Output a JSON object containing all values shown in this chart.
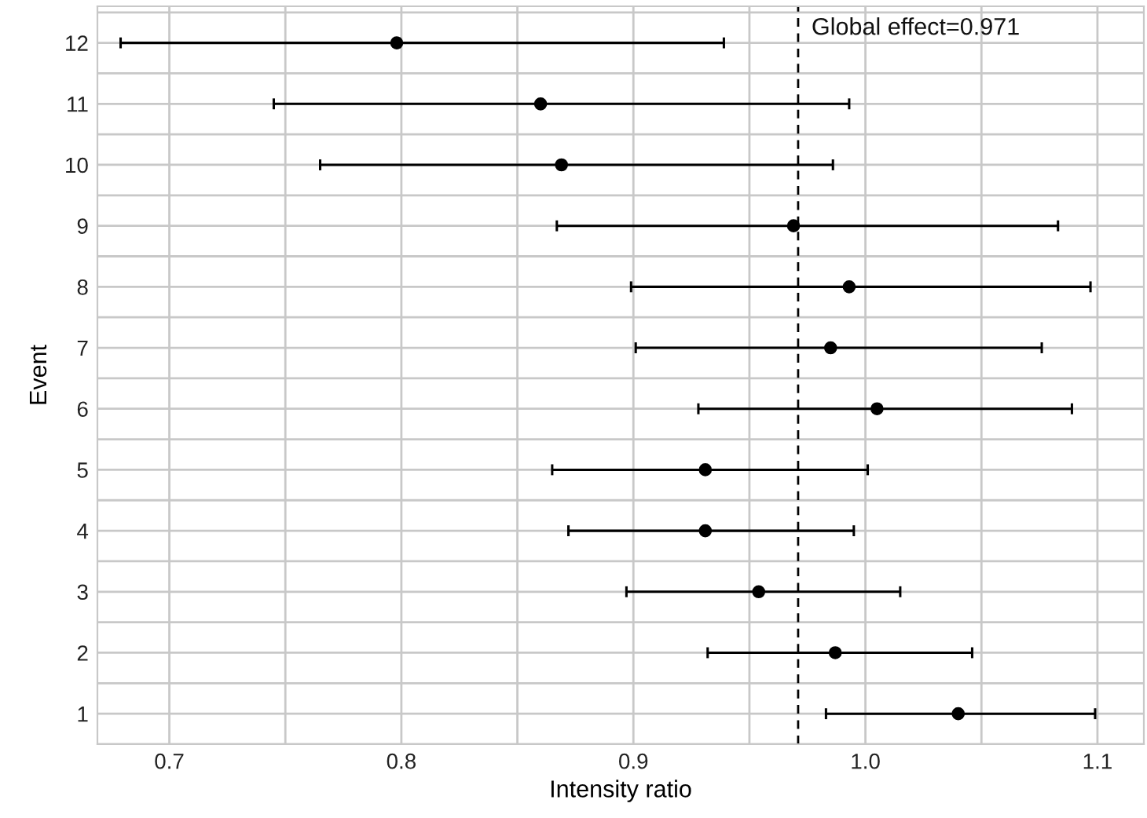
{
  "chart_data": {
    "type": "scatter",
    "orientation": "horizontal",
    "xlabel": "Intensity ratio",
    "ylabel": "Event",
    "categories": [
      "12",
      "11",
      "10",
      "9",
      "8",
      "7",
      "6",
      "5",
      "4",
      "3",
      "2",
      "1"
    ],
    "series": [
      {
        "color": "#000000",
        "values": [
          0.798,
          0.86,
          0.869,
          0.969,
          0.993,
          0.985,
          1.005,
          0.931,
          0.931,
          0.954,
          0.987,
          1.04
        ],
        "errors": [
          [
            0.679,
            0.939
          ],
          [
            0.745,
            0.993
          ],
          [
            0.765,
            0.986
          ],
          [
            0.867,
            1.083
          ],
          [
            0.899,
            1.097
          ],
          [
            0.901,
            1.076
          ],
          [
            0.928,
            1.089
          ],
          [
            0.865,
            1.001
          ],
          [
            0.872,
            0.995
          ],
          [
            0.897,
            1.015
          ],
          [
            0.932,
            1.046
          ],
          [
            0.983,
            1.099
          ]
        ]
      }
    ],
    "xlim": [
      0.669,
      1.12
    ],
    "xticks": [
      0.7,
      {
        "value": 0.75,
        "label": null
      },
      0.8,
      {
        "value": 0.85,
        "label": null
      },
      0.9,
      {
        "value": 0.95,
        "label": null
      },
      {
        "value": 1.0,
        "label": "1.0"
      },
      {
        "value": 1.05,
        "label": null
      },
      1.1
    ],
    "ref_lines": [
      {
        "axis": "x",
        "value": 0.971,
        "label": "Global effect=0.971",
        "color": "#000000",
        "line_style": "dashed"
      }
    ],
    "grid": true,
    "marker": "circle",
    "legend": false
  }
}
